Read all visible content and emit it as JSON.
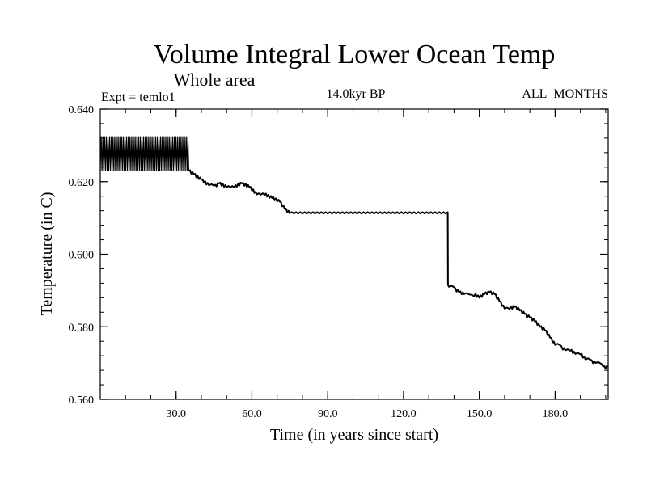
{
  "chart_data": {
    "type": "line",
    "title": "Volume Integral Lower Ocean Temp",
    "subtitle": "Whole area",
    "expt_label": "Expt = temlo1",
    "period_label": "14.0kyr BP",
    "months_label": "ALL_MONTHS",
    "xlabel": "Time (in years since start)",
    "ylabel": "Temperature (in C)",
    "xlim": [
      0,
      201
    ],
    "ylim": [
      0.56,
      0.64
    ],
    "x_ticks": [
      30,
      60,
      90,
      120,
      150,
      180
    ],
    "x_tick_labels": [
      "30.0",
      "60.0",
      "90.0",
      "120.0",
      "150.0",
      "180.0"
    ],
    "y_ticks": [
      0.56,
      0.58,
      0.6,
      0.62,
      0.64
    ],
    "y_tick_labels": [
      "0.560",
      "0.580",
      "0.600",
      "0.620",
      "0.640"
    ],
    "oscillation": {
      "x_start": 0,
      "x_end": 35,
      "low": 0.623,
      "high": 0.6325,
      "cycles": 52
    },
    "series": [
      {
        "name": "Volume Integral Lower Ocean Temp",
        "x": [
          35,
          37,
          40,
          43,
          45,
          47,
          50,
          53,
          56,
          59,
          62,
          65,
          68,
          71,
          73,
          75,
          137.5,
          137.6,
          138,
          140,
          142,
          144,
          146,
          148,
          150,
          152,
          154,
          156,
          158,
          160,
          162,
          164,
          166,
          168,
          170,
          172,
          174,
          176,
          178,
          180,
          182,
          184,
          186,
          188,
          190,
          192,
          194,
          196,
          198,
          199,
          200,
          201
        ],
        "y": [
          0.623,
          0.622,
          0.6205,
          0.619,
          0.6185,
          0.6195,
          0.6185,
          0.6185,
          0.6195,
          0.6185,
          0.6165,
          0.6165,
          0.6155,
          0.6145,
          0.6125,
          0.6113,
          0.6113,
          0.5915,
          0.591,
          0.5905,
          0.5895,
          0.589,
          0.5885,
          0.589,
          0.588,
          0.589,
          0.5895,
          0.589,
          0.587,
          0.585,
          0.585,
          0.5855,
          0.5845,
          0.5835,
          0.5825,
          0.5815,
          0.58,
          0.579,
          0.577,
          0.575,
          0.5745,
          0.5735,
          0.5735,
          0.5725,
          0.5725,
          0.571,
          0.5705,
          0.57,
          0.5695,
          0.569,
          0.5685,
          0.569
        ]
      }
    ]
  }
}
